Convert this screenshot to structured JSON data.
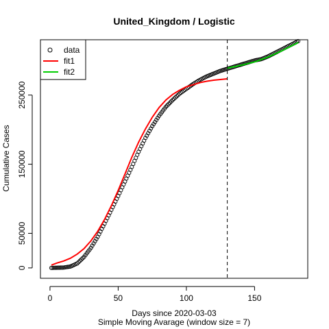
{
  "chart_data": {
    "type": "line",
    "title": "United_Kingdom / Logistic",
    "xlabel": "Days since 2020-03-03",
    "xlabel_sub": "Simple Moving Avarage (window size = 7)",
    "ylabel": "Cumulative Cases",
    "xlim": [
      -7,
      189
    ],
    "ylim": [
      -15000,
      330000
    ],
    "x_ticks": [
      0,
      50,
      100,
      150
    ],
    "y_ticks": [
      0,
      50000,
      150000,
      250000
    ],
    "x_tick_labels": [
      "0",
      "50",
      "100",
      "150"
    ],
    "y_tick_labels": [
      "0",
      "50000",
      "150000",
      "250000"
    ],
    "vline_x": 130,
    "grid": false,
    "legend": {
      "placement": "top-left",
      "entries": [
        "data",
        "fit1",
        "fit2"
      ]
    },
    "colors": {
      "data": "#000000",
      "fit1": "#ff0000",
      "fit2": "#00cd00",
      "vline": "#000000"
    },
    "series": [
      {
        "name": "data",
        "kind": "points",
        "x_start": 1,
        "x_end": 182,
        "anchors": [
          [
            1,
            0
          ],
          [
            10,
            500
          ],
          [
            15,
            2000
          ],
          [
            20,
            6500
          ],
          [
            25,
            16000
          ],
          [
            30,
            29000
          ],
          [
            35,
            45000
          ],
          [
            40,
            64000
          ],
          [
            45,
            84000
          ],
          [
            50,
            104000
          ],
          [
            55,
            125000
          ],
          [
            60,
            146000
          ],
          [
            65,
            168000
          ],
          [
            70,
            188000
          ],
          [
            75,
            205000
          ],
          [
            80,
            220000
          ],
          [
            85,
            233000
          ],
          [
            90,
            243000
          ],
          [
            95,
            252000
          ],
          [
            100,
            259000
          ],
          [
            105,
            266000
          ],
          [
            110,
            272000
          ],
          [
            115,
            277000
          ],
          [
            120,
            281000
          ],
          [
            125,
            285000
          ],
          [
            130,
            288000
          ],
          [
            135,
            291000
          ],
          [
            140,
            294000
          ],
          [
            145,
            297000
          ],
          [
            150,
            300000
          ],
          [
            155,
            302000
          ],
          [
            160,
            306000
          ],
          [
            165,
            311000
          ],
          [
            170,
            316000
          ],
          [
            175,
            321000
          ],
          [
            182,
            328000
          ]
        ]
      },
      {
        "name": "fit1",
        "kind": "line",
        "x": [
          1,
          5,
          10,
          15,
          20,
          25,
          30,
          35,
          40,
          45,
          50,
          55,
          60,
          65,
          70,
          75,
          80,
          85,
          90,
          95,
          100,
          105,
          110,
          115,
          120,
          125,
          130
        ],
        "y": [
          4000,
          7000,
          10000,
          14000,
          20000,
          28000,
          39000,
          53000,
          70000,
          90000,
          112000,
          136000,
          160000,
          182000,
          201000,
          218000,
          232000,
          243000,
          251000,
          257000,
          262000,
          265000,
          268000,
          270000,
          271500,
          272500,
          273500
        ]
      },
      {
        "name": "fit2",
        "kind": "line",
        "x": [
          130,
          140,
          150,
          160,
          170,
          182
        ],
        "y": [
          289000,
          293000,
          298000,
          305000,
          314000,
          326000
        ]
      }
    ]
  }
}
